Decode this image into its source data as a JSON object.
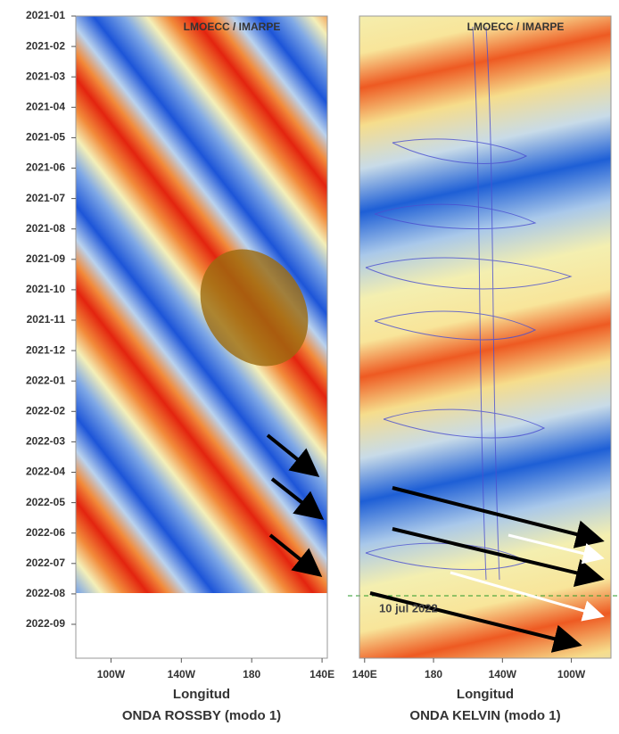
{
  "chart_data": [
    {
      "type": "heatmap",
      "title": "ONDA ROSSBY (modo 1)",
      "x_label": "Longitud",
      "source": "LMOECC / IMARPE",
      "y_categories": [
        "2021-01",
        "2021-02",
        "2021-03",
        "2021-04",
        "2021-05",
        "2021-06",
        "2021-07",
        "2021-08",
        "2021-09",
        "2021-10",
        "2021-11",
        "2021-12",
        "2022-01",
        "2022-02",
        "2022-03",
        "2022-04",
        "2022-05",
        "2022-06",
        "2022-07",
        "2022-08",
        "2022-09"
      ],
      "xlim": [
        280,
        137
      ],
      "xticks": [
        {
          "value": 260,
          "label": "100W"
        },
        {
          "value": 220,
          "label": "140W"
        },
        180,
        {
          "value": 140,
          "label": "140E"
        }
      ]
    },
    {
      "type": "heatmap",
      "title": "ONDA KELVIN (modo 1)",
      "x_label": "Longitud",
      "source": "LMOECC / IMARPE",
      "xlim": [
        137,
        283
      ],
      "xticks": [
        {
          "value": 140,
          "label": "140E"
        },
        180,
        {
          "value": 220,
          "label": "140W"
        },
        {
          "value": 260,
          "label": "100W"
        }
      ],
      "annotation": "10 jul 2022"
    }
  ]
}
